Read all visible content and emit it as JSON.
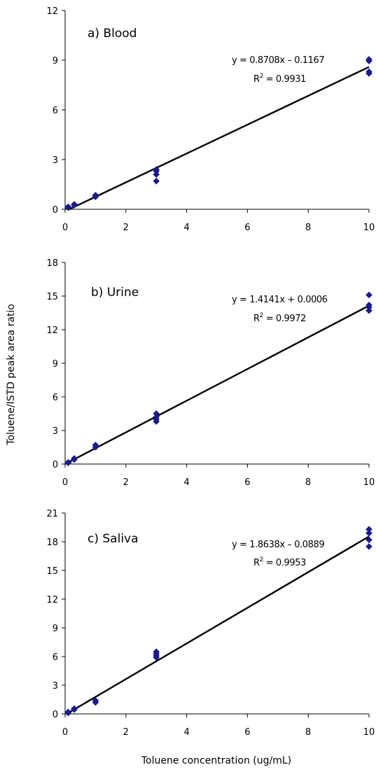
{
  "figure": {
    "ylabel": "Toluene/ISTD peak area ratio",
    "xlabel": "Toluene concentration (ug/mL)",
    "marker_color": "#1a1a8c",
    "line_color": "#000000"
  },
  "chart_data": [
    {
      "type": "scatter",
      "label": "a) Blood",
      "xlim": [
        0,
        10
      ],
      "ylim": [
        0,
        12
      ],
      "xticks": [
        0,
        2,
        4,
        6,
        8,
        10
      ],
      "yticks": [
        0,
        3,
        6,
        9,
        12
      ],
      "points": {
        "x": [
          0.1,
          0.1,
          0.3,
          0.3,
          1,
          1,
          3,
          3,
          3,
          3,
          10,
          10,
          10,
          10
        ],
        "y": [
          0.1,
          0.15,
          0.25,
          0.3,
          0.75,
          0.85,
          1.7,
          2.1,
          2.3,
          2.4,
          8.2,
          8.3,
          8.95,
          9.05
        ]
      },
      "fit": {
        "slope": 0.8708,
        "intercept": -0.1167
      },
      "equation": "y = 0.8708x – 0.1167",
      "r2_prefix": "R",
      "r2_sup": "2",
      "r2_value": " = 0.9931"
    },
    {
      "type": "scatter",
      "label": "b) Urine",
      "xlim": [
        0,
        10
      ],
      "ylim": [
        0,
        18
      ],
      "xticks": [
        0,
        2,
        4,
        6,
        8,
        10
      ],
      "yticks": [
        0,
        3,
        6,
        9,
        12,
        15,
        18
      ],
      "points": {
        "x": [
          0.1,
          0.1,
          0.3,
          0.3,
          1,
          1,
          3,
          3,
          3,
          3,
          10,
          10,
          10,
          10
        ],
        "y": [
          0.1,
          0.15,
          0.4,
          0.5,
          1.5,
          1.7,
          3.8,
          4.0,
          4.2,
          4.5,
          13.7,
          14.0,
          14.2,
          15.1
        ]
      },
      "fit": {
        "slope": 1.4141,
        "intercept": 0.0006
      },
      "equation": "y = 1.4141x + 0.0006",
      "r2_prefix": "R",
      "r2_sup": "2",
      "r2_value": " = 0.9972"
    },
    {
      "type": "scatter",
      "label": "c) Saliva",
      "xlim": [
        0,
        10
      ],
      "ylim": [
        0,
        21
      ],
      "xticks": [
        0,
        2,
        4,
        6,
        8,
        10
      ],
      "yticks": [
        0,
        3,
        6,
        9,
        12,
        15,
        18,
        21
      ],
      "points": {
        "x": [
          0.1,
          0.1,
          0.3,
          0.3,
          1,
          1,
          3,
          3,
          3,
          3,
          10,
          10,
          10,
          10
        ],
        "y": [
          0.1,
          0.2,
          0.45,
          0.55,
          1.2,
          1.4,
          5.9,
          6.1,
          6.3,
          6.5,
          17.5,
          18.2,
          18.9,
          19.3
        ]
      },
      "fit": {
        "slope": 1.8638,
        "intercept": -0.0889
      },
      "equation": "y = 1.8638x – 0.0889",
      "r2_prefix": "R",
      "r2_sup": "2",
      "r2_value": " = 0.9953"
    }
  ]
}
